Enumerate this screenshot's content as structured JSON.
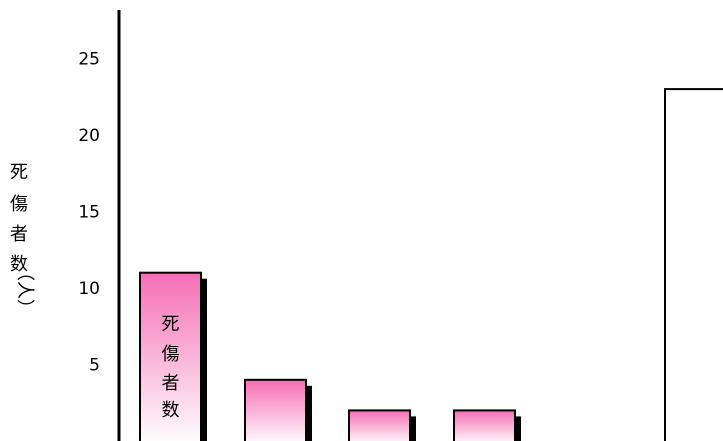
{
  "chart_data": {
    "type": "bar",
    "title": "",
    "ylabel": "死傷者数（人）",
    "ylabel_chars": [
      "死",
      "傷",
      "者",
      "数",
      "（人）"
    ],
    "yticks": [
      5,
      10,
      15,
      20,
      25
    ],
    "ylim": [
      0,
      27
    ],
    "grid": false,
    "legend": "none",
    "series": [
      {
        "values": [
          11,
          4,
          2,
          2,
          0,
          23
        ],
        "bar_label": "死傷者数",
        "bar_label_chars": [
          "死",
          "傷",
          "者",
          "数"
        ],
        "bar_label_on_index": 0,
        "colors": [
          "pink-gradient",
          "pink-gradient",
          "pink-gradient",
          "pink-gradient",
          "none",
          "white"
        ]
      }
    ],
    "colors": {
      "pink_top": "#f56eb4",
      "pink_bottom": "#ffffff",
      "outline": "#000000",
      "shadow": "#000000"
    }
  }
}
